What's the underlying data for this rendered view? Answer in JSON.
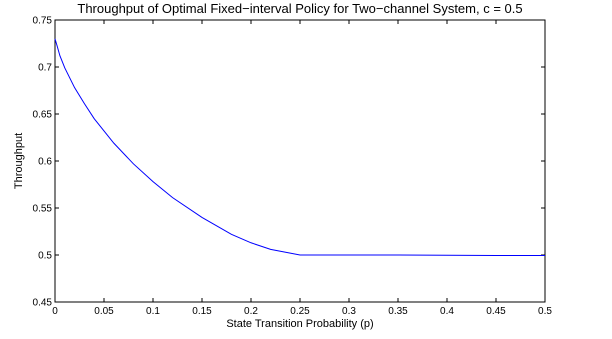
{
  "chart_data": {
    "type": "line",
    "title": "Throughput of Optimal Fixed−interval Policy for Two−channel System, c = 0.5",
    "xlabel": "State Transition Probability (p)",
    "ylabel": "Throughput",
    "xlim": [
      0,
      0.5
    ],
    "ylim": [
      0.45,
      0.75
    ],
    "x_ticks": [
      0,
      0.05,
      0.1,
      0.15,
      0.2,
      0.25,
      0.3,
      0.35,
      0.4,
      0.45,
      0.5
    ],
    "x_tick_labels": [
      "0",
      "0.05",
      "0.1",
      "0.15",
      "0.2",
      "0.25",
      "0.3",
      "0.35",
      "0.4",
      "0.45",
      "0.5"
    ],
    "y_ticks": [
      0.45,
      0.5,
      0.55,
      0.6,
      0.65,
      0.7,
      0.75
    ],
    "y_tick_labels": [
      "0.45",
      "0.5",
      "0.55",
      "0.6",
      "0.65",
      "0.7",
      "0.75"
    ],
    "grid": false,
    "series": [
      {
        "color": "#0000ff",
        "x": [
          0,
          0.002,
          0.005,
          0.01,
          0.02,
          0.03,
          0.04,
          0.05,
          0.06,
          0.08,
          0.1,
          0.12,
          0.15,
          0.18,
          0.2,
          0.22,
          0.25,
          0.3,
          0.35,
          0.4,
          0.45,
          0.5
        ],
        "y": [
          0.73,
          0.723,
          0.712,
          0.699,
          0.678,
          0.661,
          0.645,
          0.632,
          0.619,
          0.597,
          0.578,
          0.561,
          0.54,
          0.522,
          0.513,
          0.506,
          0.5,
          0.5,
          0.5,
          0.4998,
          0.4995,
          0.4995
        ]
      }
    ]
  }
}
